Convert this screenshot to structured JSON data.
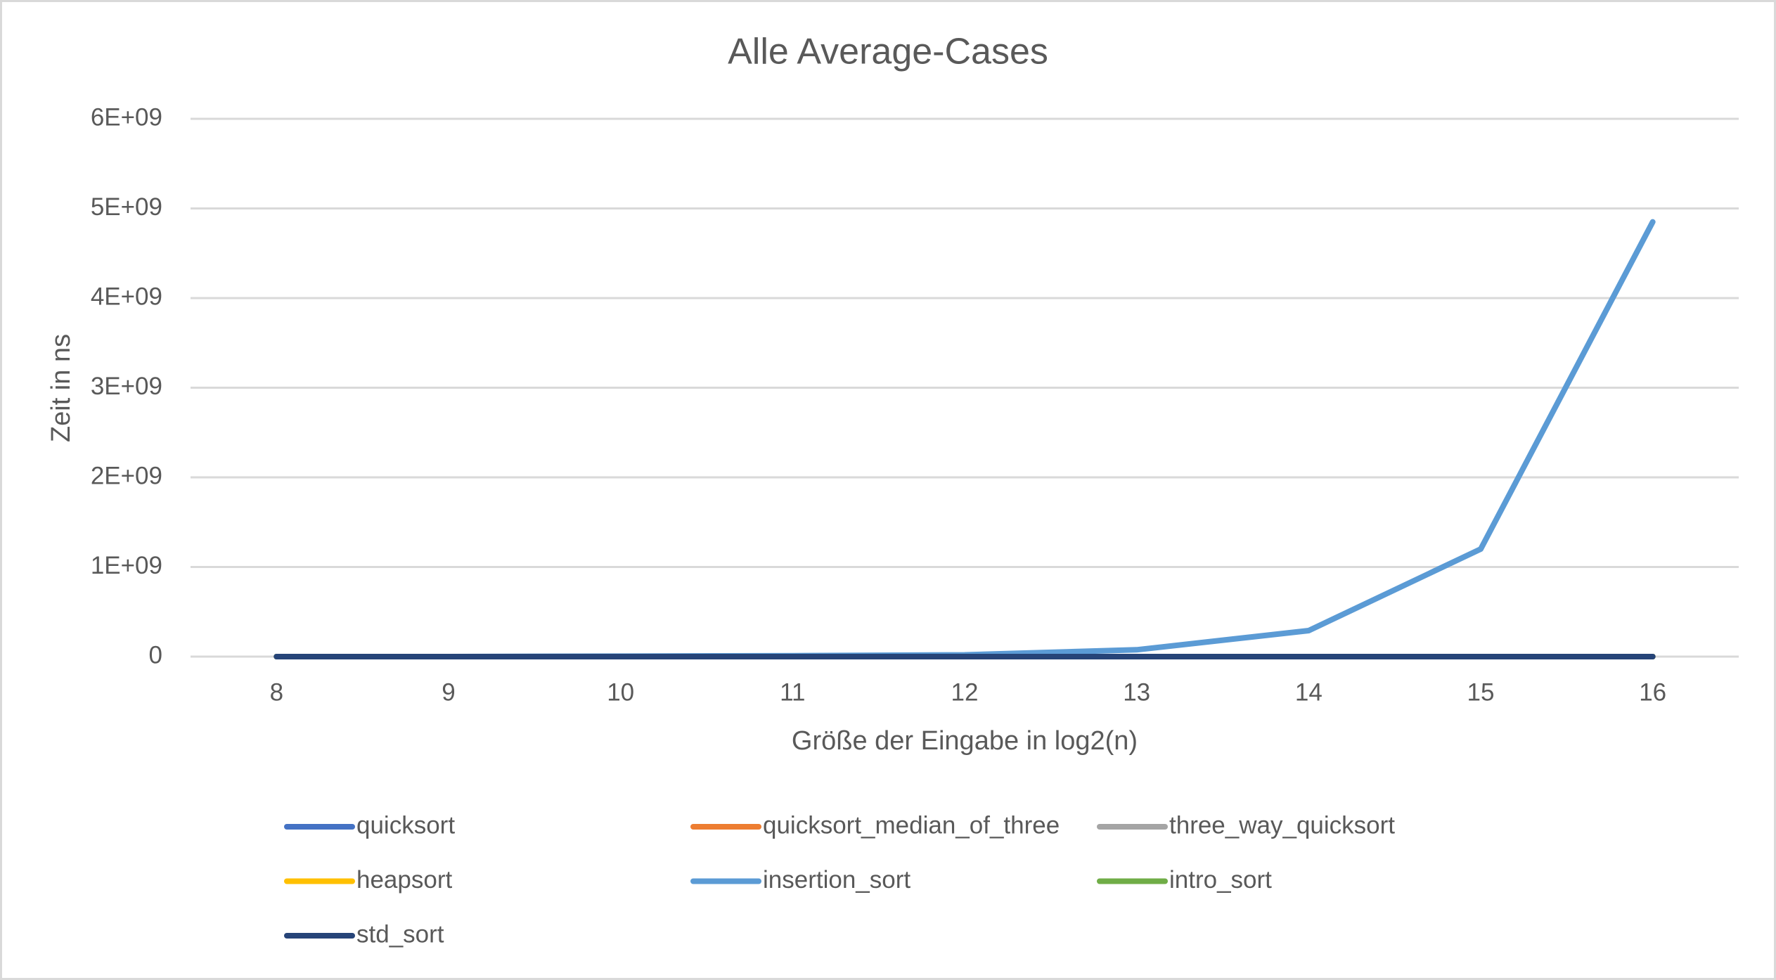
{
  "chart_data": {
    "type": "line",
    "title": "Alle Average-Cases",
    "x_label": "Größe der Eingabe in log2(n)",
    "y_label": "Zeit in ns",
    "categories": [
      8,
      9,
      10,
      11,
      12,
      13,
      14,
      15,
      16
    ],
    "series": [
      {
        "name": "quicksort",
        "color": "#4472c4",
        "values": [
          0,
          0,
          0,
          0,
          0,
          0,
          0,
          0,
          0
        ]
      },
      {
        "name": "quicksort_median_of_three",
        "color": "#ed7d31",
        "values": [
          0,
          0,
          0,
          0,
          0,
          0,
          0,
          0,
          0
        ]
      },
      {
        "name": "three_way_quicksort",
        "color": "#a5a5a5",
        "values": [
          0,
          0,
          0,
          0,
          0,
          0,
          0,
          0,
          0
        ]
      },
      {
        "name": "heapsort",
        "color": "#ffc000",
        "values": [
          0,
          0,
          0,
          0,
          0,
          0,
          0,
          0,
          0
        ]
      },
      {
        "name": "insertion_sort",
        "color": "#5b9bd5",
        "values": [
          0,
          0,
          5000000,
          10000000,
          20000000,
          76000000,
          290000000,
          1200000000,
          4850000000
        ]
      },
      {
        "name": "intro_sort",
        "color": "#70ad47",
        "values": [
          0,
          0,
          0,
          0,
          0,
          0,
          0,
          0,
          0
        ]
      },
      {
        "name": "std_sort",
        "color": "#264478",
        "values": [
          0,
          0,
          0,
          0,
          0,
          0,
          0,
          0,
          0
        ]
      }
    ],
    "ylim": [
      0,
      6000000000
    ],
    "yticks": [
      0,
      {
        "value": 1000000000,
        "label": "1E+09"
      },
      {
        "value": 2000000000,
        "label": "2E+09"
      },
      {
        "value": 3000000000,
        "label": "3E+09"
      },
      {
        "value": 4000000000,
        "label": "4E+09"
      },
      {
        "value": 5000000000,
        "label": "5E+09"
      },
      {
        "value": 6000000000,
        "label": "6E+09"
      }
    ],
    "grid": true,
    "legend": "bottom"
  }
}
